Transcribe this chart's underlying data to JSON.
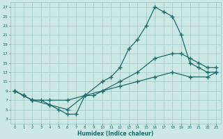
{
  "xlabel": "Humidex (Indice chaleur)",
  "bg_color": "#cce8e4",
  "grid_color": "#9fc8c4",
  "line_color": "#1a6b6b",
  "xlim": [
    -0.5,
    23.5
  ],
  "ylim": [
    2,
    28
  ],
  "xticks": [
    0,
    1,
    2,
    3,
    4,
    5,
    6,
    7,
    8,
    9,
    10,
    11,
    12,
    13,
    14,
    15,
    16,
    17,
    18,
    19,
    20,
    21,
    22,
    23
  ],
  "yticks": [
    3,
    5,
    7,
    9,
    11,
    13,
    15,
    17,
    19,
    21,
    23,
    25,
    27
  ],
  "line1_x": [
    0,
    1,
    2,
    4,
    6,
    8,
    10,
    11,
    12,
    13,
    14,
    15,
    16,
    17,
    18,
    19,
    20,
    21,
    22,
    23
  ],
  "line1_y": [
    9,
    8,
    7,
    6,
    5,
    8,
    11,
    12,
    14,
    18,
    20,
    23,
    27,
    26,
    25,
    21,
    15,
    14,
    13,
    13
  ],
  "line2_x": [
    0,
    1,
    2,
    4,
    6,
    8,
    10,
    12,
    14,
    16,
    18,
    19,
    20,
    21,
    22,
    23
  ],
  "line2_y": [
    9,
    8,
    7,
    7,
    7,
    8,
    9,
    11,
    13,
    16,
    17,
    17,
    16,
    15,
    14,
    14
  ],
  "line3_x": [
    0,
    1,
    2,
    3,
    4,
    5,
    6,
    7,
    8,
    9,
    10,
    12,
    14,
    16,
    18,
    20,
    22,
    23
  ],
  "line3_y": [
    9,
    8,
    7,
    7,
    6,
    5,
    4,
    4,
    8,
    8,
    9,
    10,
    11,
    12,
    13,
    12,
    12,
    13
  ]
}
